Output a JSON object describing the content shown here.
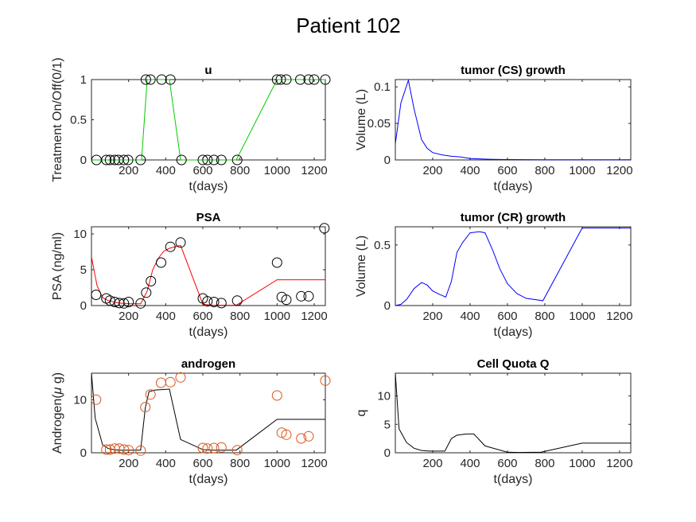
{
  "figure_title": "Patient 102",
  "chart_data": [
    {
      "id": "u",
      "type": "line",
      "title": "u",
      "xlabel": "t(days)",
      "ylabel": "Treatment On/Off(0/1)",
      "xlim": [
        0,
        1260
      ],
      "ylim": [
        0,
        1
      ],
      "xticks": [
        200,
        400,
        600,
        800,
        1000,
        1200
      ],
      "yticks": [
        0,
        0.5,
        1
      ],
      "ytick_labels": [
        "0",
        "0.5",
        "1"
      ],
      "series": [
        {
          "kind": "line",
          "color": "#00cc00",
          "x": [
            0,
            30,
            60,
            90,
            120,
            150,
            180,
            210,
            270,
            300,
            330,
            360,
            390,
            420,
            480,
            600,
            630,
            660,
            690,
            780,
            1000,
            1020,
            1050,
            1080,
            1110,
            1140,
            1170,
            1200,
            1260
          ],
          "y": [
            0,
            0,
            0,
            0,
            0,
            0,
            0,
            0,
            0,
            1,
            1,
            1,
            1,
            1,
            0,
            0,
            0,
            0,
            0,
            0,
            1,
            1,
            1,
            1,
            1,
            1,
            1,
            1,
            1
          ]
        },
        {
          "kind": "markers",
          "color": "#000000",
          "x": [
            27,
            80,
            100,
            125,
            145,
            175,
            197,
            265,
            293,
            318,
            378,
            425,
            485,
            600,
            625,
            660,
            700,
            785,
            1000,
            1020,
            1050,
            1125,
            1170,
            1200,
            1260
          ],
          "y": [
            0,
            0,
            0,
            0,
            0,
            0,
            0,
            0,
            1,
            1,
            1,
            1,
            0,
            0,
            0,
            0,
            0,
            0,
            1,
            1,
            1,
            1,
            1,
            1,
            1
          ]
        }
      ]
    },
    {
      "id": "tumor_cs",
      "type": "line",
      "title": "tumor (CS) growth",
      "xlabel": "t(days)",
      "ylabel": "Volume (L)",
      "xlim": [
        0,
        1260
      ],
      "ylim": [
        0,
        0.11
      ],
      "xticks": [
        200,
        400,
        600,
        800,
        1000,
        1200
      ],
      "yticks": [
        0,
        0.05,
        0.1
      ],
      "ytick_labels": [
        "0",
        "0.05",
        "0.1"
      ],
      "series": [
        {
          "kind": "line",
          "color": "#0000ff",
          "x": [
            0,
            30,
            70,
            100,
            140,
            170,
            200,
            250,
            300,
            350,
            400,
            500,
            600,
            800,
            1000,
            1260
          ],
          "y": [
            0.022,
            0.078,
            0.109,
            0.07,
            0.028,
            0.016,
            0.01,
            0.007,
            0.005,
            0.004,
            0.002,
            0.001,
            0.0005,
            0.0003,
            0.0002,
            0.0002
          ]
        }
      ]
    },
    {
      "id": "psa",
      "type": "line",
      "title": "PSA",
      "xlabel": "t(days)",
      "ylabel": "PSA (ng/ml)",
      "xlim": [
        0,
        1260
      ],
      "ylim": [
        0,
        11
      ],
      "xticks": [
        200,
        400,
        600,
        800,
        1000,
        1200
      ],
      "yticks": [
        0,
        5,
        10
      ],
      "ytick_labels": [
        "0",
        "5",
        "10"
      ],
      "series": [
        {
          "kind": "line",
          "color": "#ff0000",
          "x": [
            0,
            30,
            60,
            90,
            120,
            150,
            180,
            210,
            265,
            300,
            330,
            360,
            390,
            420,
            480,
            600,
            650,
            700,
            780,
            1000,
            1260
          ],
          "y": [
            6.8,
            2.8,
            1.1,
            0.7,
            0.5,
            0.35,
            0.3,
            0.25,
            0.25,
            2.0,
            5.0,
            6.6,
            7.6,
            8.0,
            8.4,
            0.2,
            0.05,
            0.05,
            0.05,
            3.6,
            3.6
          ]
        },
        {
          "kind": "markers",
          "color": "#000000",
          "x": [
            25,
            80,
            100,
            125,
            150,
            175,
            200,
            265,
            295,
            320,
            375,
            425,
            480,
            600,
            625,
            660,
            700,
            785,
            1000,
            1025,
            1050,
            1130,
            1170,
            1255
          ],
          "y": [
            1.5,
            1.0,
            0.7,
            0.5,
            0.35,
            0.3,
            0.5,
            0.3,
            1.8,
            3.4,
            6.0,
            8.2,
            8.8,
            1.0,
            0.6,
            0.5,
            0.35,
            0.7,
            6.0,
            1.2,
            0.8,
            1.3,
            1.3,
            10.8
          ]
        }
      ]
    },
    {
      "id": "tumor_cr",
      "type": "line",
      "title": "tumor (CR) growth",
      "xlabel": "t(days)",
      "ylabel": "Volume (L)",
      "xlim": [
        0,
        1260
      ],
      "ylim": [
        0,
        0.65
      ],
      "xticks": [
        200,
        400,
        600,
        800,
        1000,
        1200
      ],
      "yticks": [
        0,
        0.5
      ],
      "ytick_labels": [
        "0",
        "0.5"
      ],
      "series": [
        {
          "kind": "line",
          "color": "#0000ff",
          "x": [
            0,
            30,
            60,
            100,
            140,
            170,
            200,
            240,
            270,
            300,
            330,
            360,
            400,
            450,
            480,
            520,
            560,
            600,
            650,
            700,
            790,
            1000,
            1260
          ],
          "y": [
            0,
            0.01,
            0.05,
            0.14,
            0.19,
            0.17,
            0.12,
            0.09,
            0.07,
            0.2,
            0.44,
            0.52,
            0.6,
            0.61,
            0.6,
            0.46,
            0.3,
            0.18,
            0.1,
            0.06,
            0.04,
            0.64,
            0.64
          ]
        }
      ]
    },
    {
      "id": "androgen",
      "type": "line",
      "title": "androgen",
      "xlabel": "t(days)",
      "ylabel": "Androgen(μ g)",
      "ylabel_prefix": "Androgen(",
      "ylabel_mu": "μ",
      "ylabel_suffix": " g)",
      "xlim": [
        0,
        1260
      ],
      "ylim": [
        0,
        15
      ],
      "xticks": [
        200,
        400,
        600,
        800,
        1000,
        1200
      ],
      "yticks": [
        0,
        10
      ],
      "ytick_labels": [
        "0",
        "10"
      ],
      "series": [
        {
          "kind": "line",
          "color": "#000000",
          "x": [
            0,
            20,
            60,
            90,
            120,
            150,
            180,
            210,
            265,
            290,
            310,
            340,
            370,
            420,
            480,
            600,
            650,
            780,
            1000,
            1260
          ],
          "y": [
            15,
            6.5,
            1.5,
            0.8,
            0.6,
            0.5,
            0.5,
            0.5,
            0.5,
            8.5,
            11.5,
            11.8,
            11.9,
            12.0,
            2.5,
            0.6,
            0.5,
            0.5,
            6.3,
            6.3
          ]
        },
        {
          "kind": "markers",
          "color": "#d95319",
          "x": [
            25,
            80,
            100,
            125,
            150,
            175,
            200,
            265,
            290,
            318,
            375,
            425,
            480,
            600,
            625,
            660,
            700,
            785,
            1000,
            1025,
            1050,
            1130,
            1170,
            1260
          ],
          "y": [
            10,
            0.6,
            0.6,
            0.8,
            0.8,
            0.6,
            0.5,
            0.4,
            8.6,
            11.0,
            13.2,
            13.3,
            14.2,
            0.9,
            0.8,
            0.9,
            1.0,
            0.5,
            10.8,
            3.8,
            3.4,
            2.7,
            3.1,
            13.6
          ]
        }
      ]
    },
    {
      "id": "cell_quota",
      "type": "line",
      "title": "Cell Quota Q",
      "xlabel": "t(days)",
      "ylabel": "q",
      "xlim": [
        0,
        1260
      ],
      "ylim": [
        0,
        14
      ],
      "xticks": [
        200,
        400,
        600,
        800,
        1000,
        1200
      ],
      "yticks": [
        0,
        5,
        10
      ],
      "ytick_labels": [
        "0",
        "5",
        "10"
      ],
      "series": [
        {
          "kind": "line",
          "color": "#000000",
          "x": [
            0,
            20,
            60,
            100,
            140,
            180,
            210,
            265,
            300,
            330,
            380,
            420,
            480,
            600,
            660,
            780,
            1000,
            1260
          ],
          "y": [
            14,
            4.2,
            1.8,
            0.8,
            0.4,
            0.3,
            0.3,
            0.3,
            2.5,
            3.1,
            3.3,
            3.3,
            1.2,
            0.1,
            0.05,
            0.1,
            1.7,
            1.7
          ]
        }
      ]
    }
  ]
}
